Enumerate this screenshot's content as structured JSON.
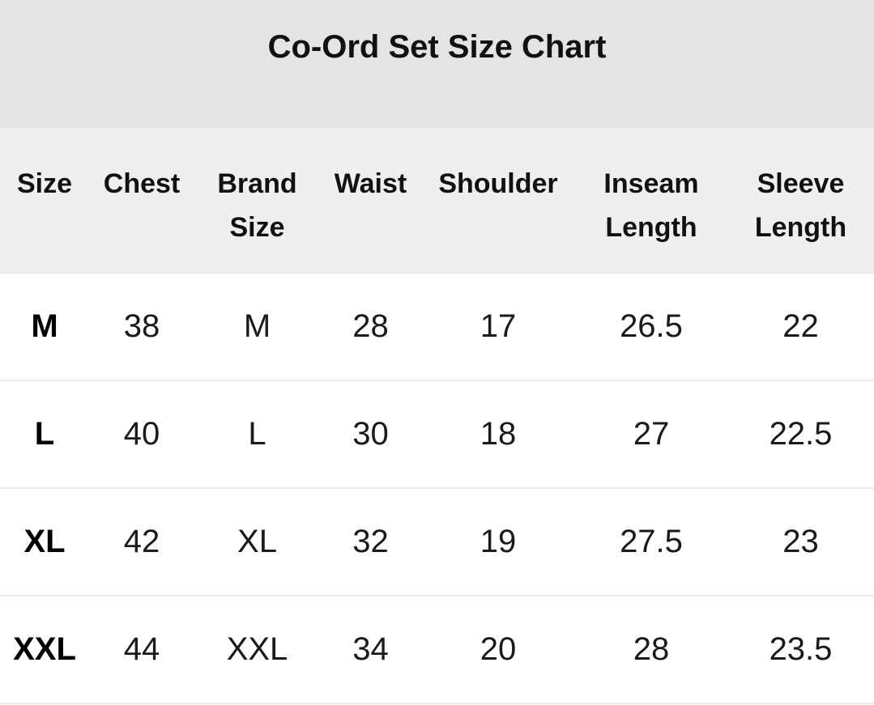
{
  "title": "Co-Ord Set Size Chart",
  "headers": [
    "Size",
    "Chest",
    "Brand Size",
    "Waist",
    "Shoulder",
    "Inseam Length",
    "Sleeve Length"
  ],
  "rows": [
    [
      "M",
      "38",
      "M",
      "28",
      "17",
      "26.5",
      "22"
    ],
    [
      "L",
      "40",
      "L",
      "30",
      "18",
      "27",
      "22.5"
    ],
    [
      "XL",
      "42",
      "XL",
      "32",
      "19",
      "27.5",
      "23"
    ],
    [
      "XXL",
      "44",
      "XXL",
      "34",
      "20",
      "28",
      "23.5"
    ]
  ]
}
